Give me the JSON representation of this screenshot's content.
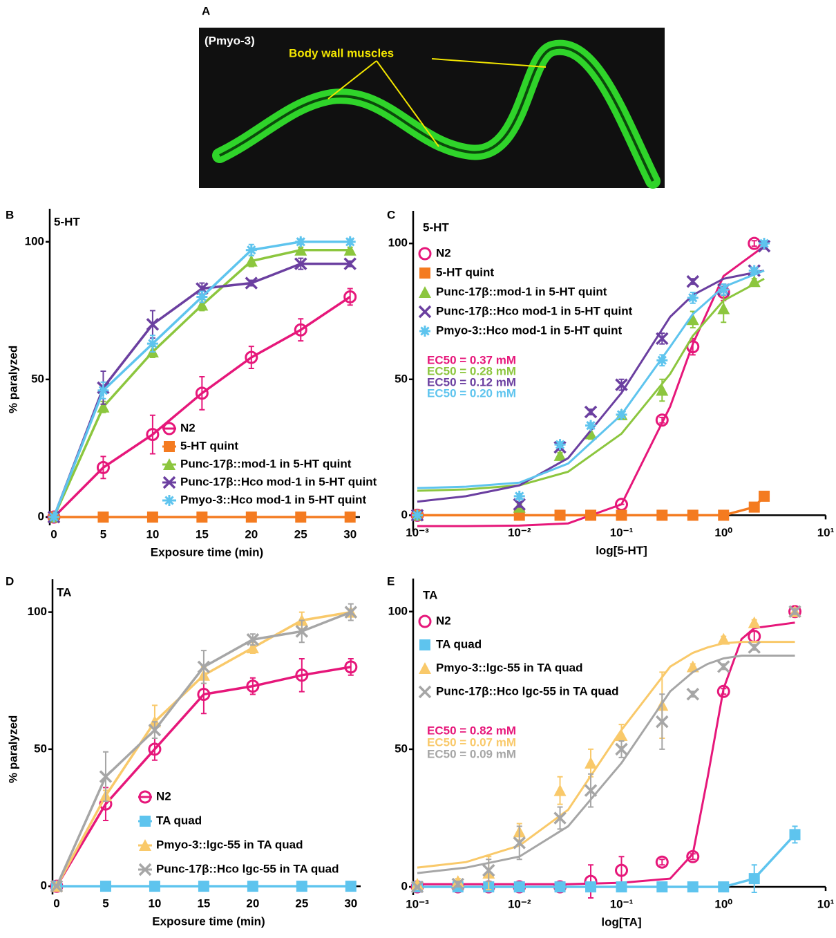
{
  "panel_a": {
    "panel": "A",
    "caption": "(Pmyo-3)",
    "annotation": "Body wall muscles"
  },
  "chart_data": [
    {
      "type": "line",
      "panel": "B",
      "title": "5-HT",
      "x_label": "Exposure time (min)",
      "y_label": "% paralyzed",
      "x": [
        0,
        5,
        10,
        15,
        20,
        25,
        30
      ],
      "xlim": [
        0,
        31
      ],
      "xticks": [
        0,
        5,
        10,
        15,
        20,
        25,
        30
      ],
      "ylim": [
        -3,
        112
      ],
      "yticks": [
        0,
        50,
        100
      ],
      "series": [
        {
          "name": "N2",
          "color": "#e6177a",
          "marker": "circle",
          "values": [
            0,
            18,
            30,
            45,
            58,
            68,
            80
          ],
          "errors": [
            0,
            4,
            7,
            6,
            4,
            4,
            3
          ]
        },
        {
          "name": "5-HT quint",
          "color": "#f47b20",
          "marker": "square",
          "values": [
            0,
            0,
            0,
            0,
            0,
            0,
            0
          ],
          "errors": [
            0,
            0,
            0,
            0,
            0,
            0,
            0
          ]
        },
        {
          "name": "Punc-17β::mod-1 in 5-HT quint",
          "color": "#8cc63e",
          "marker": "triangle",
          "values": [
            0,
            40,
            60,
            77,
            93,
            97,
            97
          ],
          "errors": [
            0,
            2,
            2,
            2,
            2,
            1,
            1
          ]
        },
        {
          "name": "Punc-17β::Hco mod-1 in 5-HT quint",
          "color": "#6b3fa0",
          "marker": "cross",
          "values": [
            0,
            47,
            70,
            83,
            85,
            92,
            92
          ],
          "errors": [
            0,
            6,
            5,
            2,
            1,
            2,
            1
          ]
        },
        {
          "name": "Pmyo-3::Hco mod-1 in 5-HT quint",
          "color": "#5ec4ee",
          "marker": "asterisk",
          "values": [
            0,
            46,
            63,
            80,
            97,
            100,
            100
          ],
          "errors": [
            0,
            3,
            3,
            2,
            2,
            1,
            1
          ]
        }
      ]
    },
    {
      "type": "dose-response",
      "panel": "C",
      "title": "5-HT",
      "x_label": "log[5-HT]",
      "xscale": "log",
      "xlim": [
        0.001,
        10
      ],
      "xticks": [
        {
          "value": 0.001,
          "label": "10⁻³"
        },
        {
          "value": 0.01,
          "label": "10⁻²"
        },
        {
          "value": 0.1,
          "label": "10⁻¹"
        },
        {
          "value": 1,
          "label": "10⁰"
        },
        {
          "value": 10,
          "label": "10¹"
        }
      ],
      "ylim": [
        -6,
        112
      ],
      "yticks": [
        0,
        50,
        100
      ],
      "fit_x": [
        0.001,
        0.003,
        0.01,
        0.03,
        0.1,
        0.3,
        0.5,
        1,
        2.5
      ],
      "series": [
        {
          "name": "N2",
          "color": "#e6177a",
          "marker": "circle",
          "x": [
            0.001,
            0.1,
            0.25,
            0.5,
            1,
            2
          ],
          "values": [
            0,
            4,
            35,
            62,
            82,
            100
          ],
          "errors": [
            0,
            0,
            1,
            3,
            3,
            1
          ],
          "fit": [
            -4,
            -4,
            -3.8,
            -3,
            4,
            40,
            63,
            88,
            99
          ]
        },
        {
          "name": "5-HT quint",
          "color": "#f47b20",
          "marker": "square",
          "connect": true,
          "x": [
            0.001,
            0.01,
            0.025,
            0.05,
            0.1,
            0.25,
            0.5,
            1,
            2,
            2.5
          ],
          "values": [
            0,
            0,
            0,
            0,
            0,
            0,
            0,
            0,
            3,
            7
          ],
          "errors": [
            0,
            0,
            0,
            0,
            0,
            0,
            0,
            0,
            1,
            1
          ]
        },
        {
          "name": "Punc-17β::mod-1 in 5-HT quint",
          "color": "#8cc63e",
          "marker": "triangle",
          "x": [
            0.001,
            0.01,
            0.025,
            0.05,
            0.1,
            0.25,
            0.5,
            1,
            2
          ],
          "values": [
            0,
            3,
            22,
            30,
            37,
            46,
            72,
            76,
            86
          ],
          "errors": [
            0,
            1,
            1,
            2,
            1,
            4,
            3,
            5,
            1
          ],
          "fit": [
            9,
            9.5,
            11,
            16,
            30,
            52,
            66,
            79,
            87
          ]
        },
        {
          "name": "Punc-17β::Hco mod-1 in 5-HT quint",
          "color": "#6b3fa0",
          "marker": "cross",
          "x": [
            0.001,
            0.01,
            0.025,
            0.05,
            0.1,
            0.25,
            0.5,
            1,
            2,
            2.5
          ],
          "values": [
            0,
            4,
            25,
            38,
            48,
            65,
            86,
            83,
            90,
            99
          ],
          "errors": [
            0,
            1,
            1,
            1,
            2,
            2,
            1,
            2,
            1,
            1
          ],
          "fit": [
            5,
            7,
            11,
            21,
            45,
            73,
            81,
            87,
            90
          ]
        },
        {
          "name": "Pmyo-3::Hco mod-1 in 5-HT quint",
          "color": "#5ec4ee",
          "marker": "asterisk",
          "x": [
            0.001,
            0.01,
            0.025,
            0.05,
            0.1,
            0.25,
            0.5,
            1,
            2,
            2.5
          ],
          "values": [
            0,
            7,
            26,
            33,
            37,
            57,
            80,
            83,
            90,
            100
          ],
          "errors": [
            0,
            1,
            1,
            1,
            1,
            2,
            2,
            2,
            1,
            1
          ],
          "fit": [
            10,
            10.5,
            12,
            19,
            37,
            62,
            74,
            84,
            90
          ]
        }
      ],
      "annotations": [
        {
          "text": "EC50 = 0.37 mM",
          "color": "#e6177a"
        },
        {
          "text": "EC50 = 0.28 mM",
          "color": "#8cc63e"
        },
        {
          "text": "EC50 = 0.12 mM",
          "color": "#6b3fa0"
        },
        {
          "text": "EC50 = 0.20 mM",
          "color": "#5ec4ee"
        }
      ]
    },
    {
      "type": "line",
      "panel": "D",
      "title": "TA",
      "x_label": "Exposure time (min)",
      "y_label": "% paralyzed",
      "x": [
        0,
        5,
        10,
        15,
        20,
        25,
        30
      ],
      "xlim": [
        0,
        31
      ],
      "xticks": [
        0,
        5,
        10,
        15,
        20,
        25,
        30
      ],
      "ylim": [
        -3,
        112
      ],
      "yticks": [
        0,
        50,
        100
      ],
      "series": [
        {
          "name": "N2",
          "color": "#e6177a",
          "marker": "circle",
          "values": [
            0,
            30,
            50,
            70,
            73,
            77,
            80
          ],
          "errors": [
            0,
            6,
            4,
            7,
            3,
            6,
            3
          ]
        },
        {
          "name": "TA quad",
          "color": "#5ec4ee",
          "marker": "square",
          "values": [
            0,
            0,
            0,
            0,
            0,
            0,
            0
          ],
          "errors": [
            0,
            0,
            0,
            0,
            0,
            0,
            0
          ]
        },
        {
          "name": "Pmyo-3::lgc-55 in TA quad",
          "color": "#f9c96a",
          "marker": "triangle",
          "values": [
            0,
            33,
            60,
            77,
            87,
            97,
            100
          ],
          "errors": [
            0,
            2,
            6,
            3,
            2,
            3,
            1
          ]
        },
        {
          "name": "Punc-17β::Hco lgc-55 in TA quad",
          "color": "#a6a6a6",
          "marker": "cross",
          "values": [
            0,
            40,
            57,
            80,
            90,
            93,
            100
          ],
          "errors": [
            0,
            9,
            3,
            6,
            2,
            4,
            3
          ]
        }
      ]
    },
    {
      "type": "dose-response",
      "panel": "E",
      "title": "TA",
      "x_label": "log[TA]",
      "xscale": "log",
      "xlim": [
        0.001,
        10
      ],
      "xticks": [
        {
          "value": 0.001,
          "label": "10⁻³"
        },
        {
          "value": 0.01,
          "label": "10⁻²"
        },
        {
          "value": 0.1,
          "label": "10⁻¹"
        },
        {
          "value": 1,
          "label": "10⁰"
        },
        {
          "value": 10,
          "label": "10¹"
        }
      ],
      "ylim": [
        -3,
        112
      ],
      "yticks": [
        0,
        50,
        100
      ],
      "fit_x": [
        0.001,
        0.003,
        0.01,
        0.03,
        0.1,
        0.3,
        0.5,
        0.7,
        1,
        1.5,
        2,
        5
      ],
      "series": [
        {
          "name": "N2",
          "color": "#e6177a",
          "marker": "circle",
          "x": [
            0.001,
            0.0025,
            0.005,
            0.01,
            0.025,
            0.05,
            0.1,
            0.25,
            0.5,
            1,
            2,
            5
          ],
          "values": [
            0,
            0,
            0,
            0,
            0,
            2,
            6,
            9,
            11,
            71,
            91,
            100
          ],
          "errors": [
            0,
            0,
            0,
            0,
            0,
            6,
            5,
            1,
            1,
            1,
            2,
            1
          ],
          "fit": [
            1,
            1,
            1,
            1,
            1.5,
            3,
            12,
            40,
            72,
            90,
            94,
            96
          ]
        },
        {
          "name": "TA quad",
          "color": "#5ec4ee",
          "marker": "square",
          "connect": true,
          "x": [
            0.001,
            0.0025,
            0.005,
            0.01,
            0.025,
            0.05,
            0.1,
            0.25,
            0.5,
            1,
            2,
            5
          ],
          "values": [
            0,
            0,
            0,
            0,
            0,
            0,
            0,
            0,
            0,
            0,
            3,
            19
          ],
          "errors": [
            0,
            0,
            0,
            0,
            0,
            0,
            0,
            0,
            0,
            0,
            5,
            3
          ]
        },
        {
          "name": "Pmyo-3::lgc-55 in TA quad",
          "color": "#f9c96a",
          "marker": "triangle",
          "x": [
            0.001,
            0.0025,
            0.005,
            0.01,
            0.025,
            0.05,
            0.1,
            0.25,
            0.5,
            1,
            2,
            5
          ],
          "values": [
            1,
            2,
            5,
            20,
            35,
            45,
            55,
            66,
            80,
            90,
            96,
            100
          ],
          "errors": [
            0,
            1,
            6,
            3,
            5,
            5,
            4,
            12,
            1,
            1,
            1,
            1
          ],
          "fit": [
            7,
            9,
            15,
            28,
            57,
            80,
            85,
            87,
            88.5,
            89,
            89,
            89
          ]
        },
        {
          "name": "Punc-17β::Hco lgc-55 in TA quad",
          "color": "#a6a6a6",
          "marker": "cross",
          "x": [
            0.001,
            0.0025,
            0.005,
            0.01,
            0.025,
            0.05,
            0.1,
            0.25,
            0.5,
            1,
            2,
            5
          ],
          "values": [
            0,
            1,
            6,
            16,
            25,
            35,
            50,
            60,
            70,
            80,
            87,
            100
          ],
          "errors": [
            0,
            1,
            4,
            6,
            4,
            6,
            3,
            10,
            1,
            1,
            1,
            1
          ],
          "fit": [
            5,
            7,
            11,
            22,
            45,
            71,
            78,
            81,
            83,
            84,
            84,
            84
          ]
        }
      ],
      "annotations": [
        {
          "text": "EC50 = 0.82 mM",
          "color": "#e6177a"
        },
        {
          "text": "EC50 = 0.07 mM",
          "color": "#f9c96a"
        },
        {
          "text": "EC50 = 0.09 mM",
          "color": "#a6a6a6"
        }
      ]
    }
  ]
}
